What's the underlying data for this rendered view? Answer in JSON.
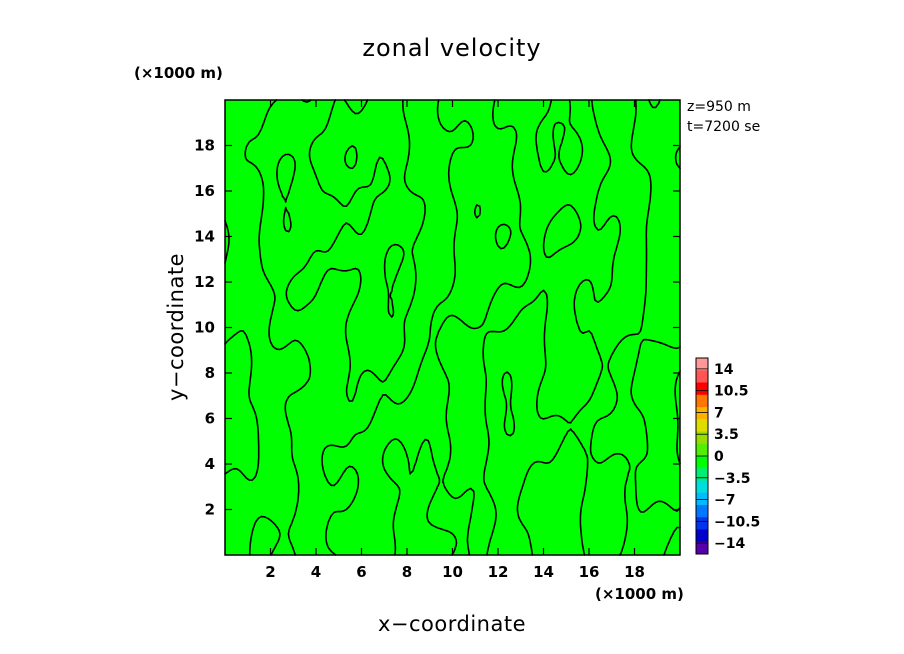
{
  "chart_data": {
    "type": "heatmap",
    "title": "zonal velocity",
    "xlabel": "x−coordinate",
    "ylabel": "y−coordinate",
    "x_unit": "(×1000 m)",
    "y_unit": "(×1000 m)",
    "xlim": [
      0,
      20
    ],
    "ylim": [
      0,
      20
    ],
    "x_ticks": [
      2,
      4,
      6,
      8,
      10,
      12,
      14,
      16,
      18
    ],
    "y_ticks": [
      2,
      4,
      6,
      8,
      10,
      12,
      14,
      16,
      18
    ],
    "info": [
      "z=950 m",
      "t=7200 se"
    ],
    "fill_color": "#00ff00",
    "contour_level": 0,
    "colorbar": {
      "colors": [
        "#ff9999",
        "#ff5555",
        "#ff0000",
        "#ff7700",
        "#ffb000",
        "#dddd00",
        "#99dd00",
        "#55ee00",
        "#00ff00",
        "#00ee77",
        "#00dddd",
        "#00bbff",
        "#0077ff",
        "#0033ee",
        "#0000cc",
        "#5500aa"
      ],
      "labels": [
        "14",
        "10.5",
        "7",
        "3.5",
        "0",
        "−3.5",
        "−7",
        "−10.5",
        "−14"
      ]
    }
  }
}
